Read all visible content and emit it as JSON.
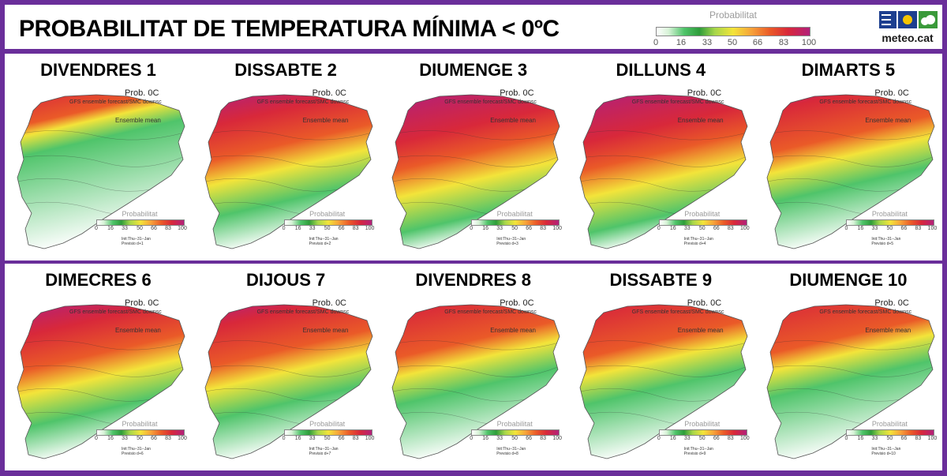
{
  "title": "PROBABILITAT DE TEMPERATURA MÍNIMA < 0ºC",
  "header_legend": {
    "label": "Probabilitat",
    "ticks": [
      "0",
      "16",
      "33",
      "50",
      "66",
      "83",
      "100"
    ]
  },
  "brand": {
    "name": "meteo.cat"
  },
  "map_labels": {
    "prob": "Prob. 0C",
    "model": "GFS ensemble forecast/SMC downsc",
    "ensemble": "Ensemble mean",
    "legend": "Probabilitat",
    "init": "Init:Thu--31--Jan"
  },
  "panels": [
    {
      "day": "DIVENDRES 1",
      "previsio": "Previsio d+1",
      "cold": 0.35
    },
    {
      "day": "DISSABTE 2",
      "previsio": "Previsio d+2",
      "cold": 0.75
    },
    {
      "day": "DIUMENGE 3",
      "previsio": "Previsio d+3",
      "cold": 0.85
    },
    {
      "day": "DILLUNS 4",
      "previsio": "Previsio d+4",
      "cold": 0.85
    },
    {
      "day": "DIMARTS 5",
      "previsio": "Previsio d+5",
      "cold": 0.65
    },
    {
      "day": "DIMECRES 6",
      "previsio": "Previsio d+6",
      "cold": 0.75
    },
    {
      "day": "DIJOUS 7",
      "previsio": "Previsio d+7",
      "cold": 0.7
    },
    {
      "day": "DIVENDRES 8",
      "previsio": "Previsio d+8",
      "cold": 0.6
    },
    {
      "day": "DISSABTE 9",
      "previsio": "Previsio d+9",
      "cold": 0.6
    },
    {
      "day": "DIUMENGE 10",
      "previsio": "Previsio d+10",
      "cold": 0.55
    }
  ],
  "colors": {
    "frame": "#6a2e9a",
    "scale": [
      "#ffffff",
      "#4fc46a",
      "#a6d64a",
      "#f3e43a",
      "#f6a23a",
      "#ea5a28",
      "#d8283a",
      "#b2207a"
    ]
  }
}
